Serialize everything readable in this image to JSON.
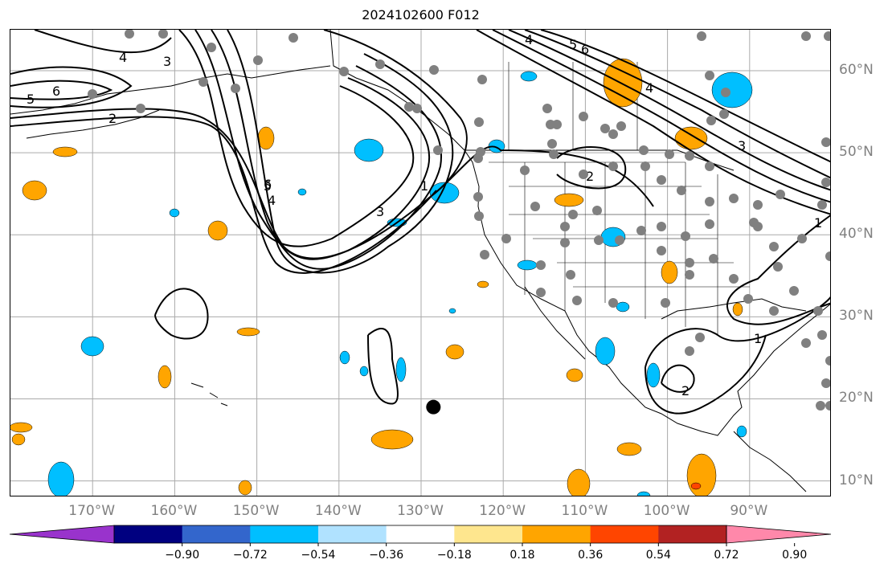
{
  "title": "2024102600 F012",
  "map": {
    "lon_range": [
      -180,
      -80
    ],
    "lat_range": [
      8,
      65
    ],
    "lon_labels": [
      "170°W",
      "160°W",
      "150°W",
      "140°W",
      "130°W",
      "120°W",
      "110°W",
      "100°W",
      "90°W"
    ],
    "lat_labels": [
      "60°N",
      "50°N",
      "40°N",
      "30°N",
      "20°N",
      "10°N"
    ],
    "gridline_color": "#aaaaaa",
    "label_color": "#808080",
    "contour_labels": [
      "5",
      "6",
      "2",
      "4",
      "3",
      "6",
      "1",
      "3",
      "4",
      "5",
      "2",
      "1",
      "4",
      "6",
      "5",
      "4",
      "3",
      "2",
      "1"
    ],
    "marker": {
      "lon": -128.5,
      "lat": 19
    }
  },
  "colorbar": {
    "ticks": [
      "−0.90",
      "−0.72",
      "−0.54",
      "−0.36",
      "−0.18",
      "0.18",
      "0.36",
      "0.54",
      "0.72",
      "0.90"
    ],
    "colors": [
      "#9933cc",
      "#000080",
      "#3366cc",
      "#00bfff",
      "#b0e2ff",
      "#ffffff",
      "#fee68e",
      "#ffa500",
      "#ff4500",
      "#b22222",
      "#ff88aa"
    ]
  }
}
